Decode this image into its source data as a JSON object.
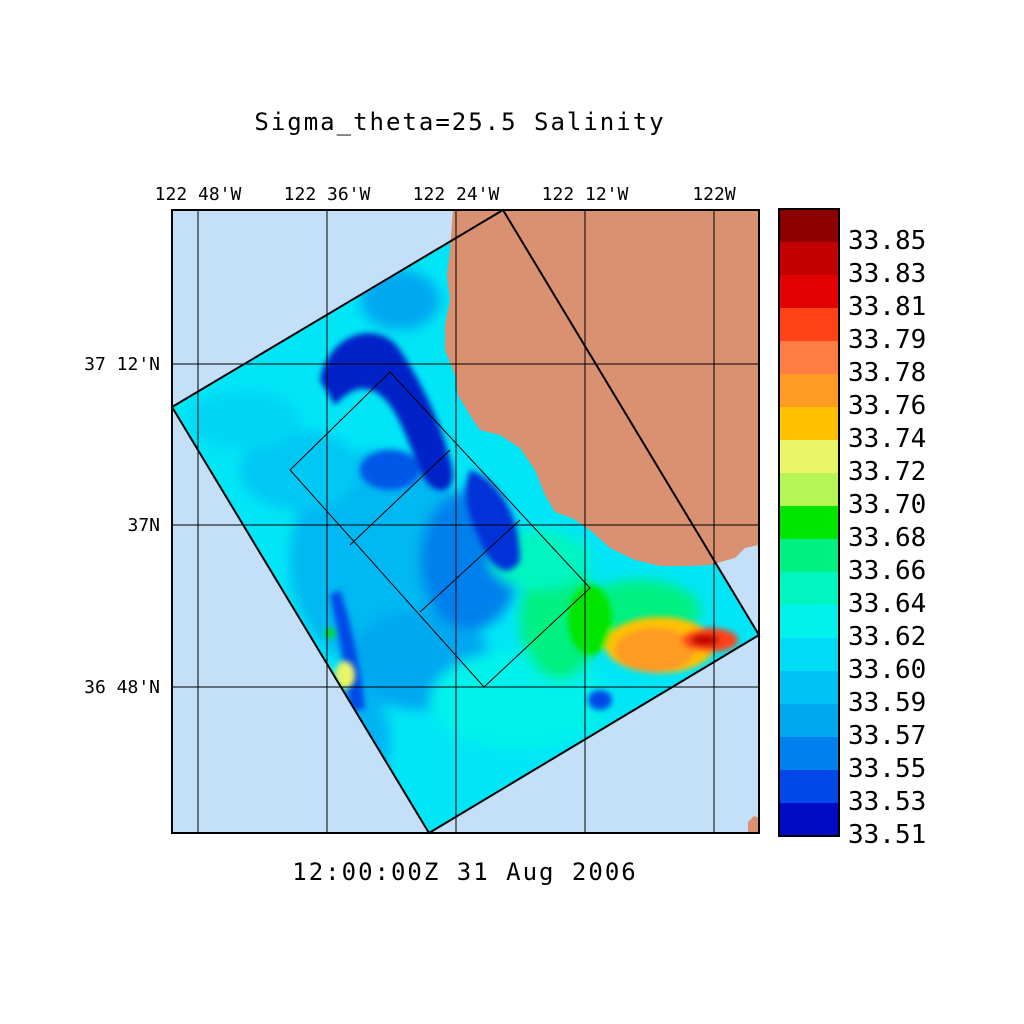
{
  "title": "Sigma_theta=25.5 Salinity",
  "timestamp": "12:00:00Z  31 Aug 2006",
  "map": {
    "lon_labels": [
      "122 48'W",
      "122 36'W",
      "122 24'W",
      "122 12'W",
      "122W"
    ],
    "lat_labels": [
      "37 12'N",
      "37N",
      "36 48'N"
    ],
    "colors": {
      "ocean": "#c3e0f8",
      "land": "#d99171",
      "border": "#000000"
    }
  },
  "colorbar": {
    "labels": [
      "33.85",
      "33.83",
      "33.81",
      "33.79",
      "33.78",
      "33.76",
      "33.74",
      "33.72",
      "33.70",
      "33.68",
      "33.66",
      "33.64",
      "33.62",
      "33.60",
      "33.59",
      "33.57",
      "33.55",
      "33.53",
      "33.51"
    ],
    "colors": [
      "#8e0000",
      "#c20000",
      "#e30000",
      "#ff4316",
      "#ff7c43",
      "#ff9a24",
      "#ffc100",
      "#e9f566",
      "#b6f556",
      "#00e600",
      "#00f082",
      "#00f5c0",
      "#00f2ec",
      "#00dcf6",
      "#00c2f6",
      "#00a8f0",
      "#0080ec",
      "#0048e8",
      "#000cc4"
    ]
  }
}
